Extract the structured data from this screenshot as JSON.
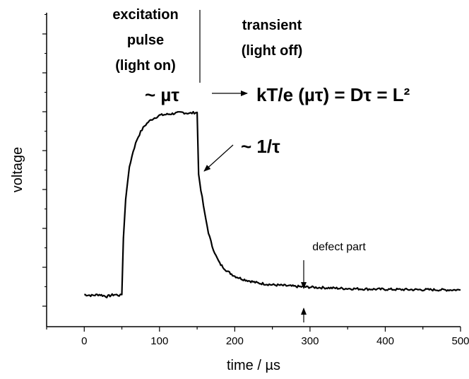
{
  "chart_data": {
    "type": "line",
    "xlabel": "time / µs",
    "ylabel": "voltage",
    "xlim": [
      -50,
      500
    ],
    "x_ticks": [
      0,
      100,
      200,
      300,
      400,
      500
    ],
    "y_tick_labels_shown": false,
    "grid": false,
    "series": [
      {
        "x": [
          0,
          10,
          20,
          30,
          40,
          48,
          50,
          52,
          55,
          60,
          65,
          70,
          75,
          80,
          85,
          90,
          95,
          100,
          110,
          120,
          130,
          140,
          148,
          150,
          152,
          155,
          160,
          165,
          170,
          175,
          180,
          190,
          200,
          210,
          220,
          230,
          240,
          250,
          260,
          270,
          280,
          290,
          300,
          320,
          340,
          360,
          380,
          400,
          420,
          440,
          460,
          480,
          500
        ],
        "y": [
          0.06,
          0.055,
          0.06,
          0.05,
          0.06,
          0.055,
          0.06,
          0.35,
          0.55,
          0.72,
          0.8,
          0.86,
          0.9,
          0.93,
          0.95,
          0.965,
          0.975,
          0.985,
          0.99,
          0.995,
          1.0,
          0.995,
          1.0,
          1.0,
          0.68,
          0.6,
          0.48,
          0.38,
          0.31,
          0.26,
          0.22,
          0.18,
          0.155,
          0.14,
          0.13,
          0.12,
          0.115,
          0.11,
          0.108,
          0.105,
          0.102,
          0.1,
          0.098,
          0.095,
          0.092,
          0.09,
          0.088,
          0.087,
          0.086,
          0.085,
          0.085,
          0.084,
          0.084
        ]
      }
    ]
  },
  "annotations": {
    "excitation": [
      "excitation",
      "pulse",
      "(light on)"
    ],
    "transient": [
      "transient",
      "(light off)"
    ],
    "mu_tau": "~ µτ",
    "formula": "kT/e (µτ) = Dτ = L²",
    "inv_tau": "~ 1/τ",
    "defect": "defect part"
  }
}
